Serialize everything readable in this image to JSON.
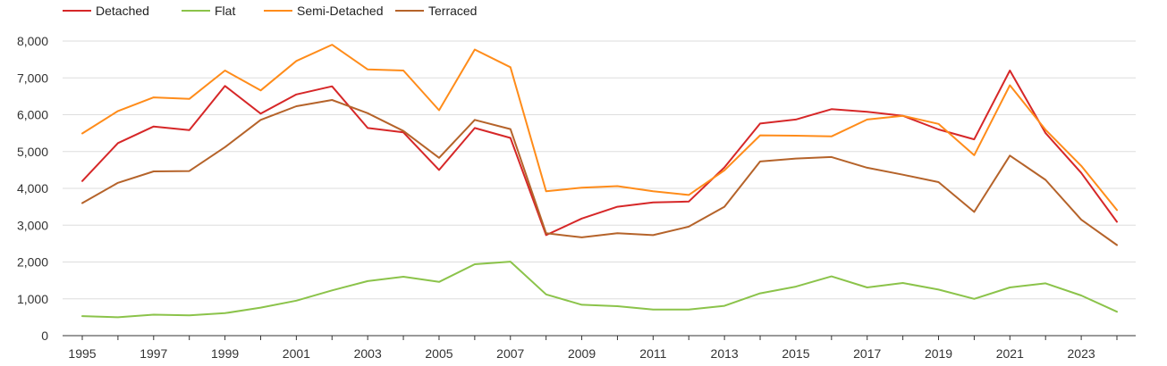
{
  "chart_data": {
    "type": "line",
    "title": "",
    "xlabel": "",
    "ylabel": "",
    "ylim": [
      0,
      8000
    ],
    "xlim": [
      1995,
      2024
    ],
    "grid": true,
    "legend_position": "top-left",
    "y_ticks": [
      0,
      1000,
      2000,
      3000,
      4000,
      5000,
      6000,
      7000,
      8000
    ],
    "y_tick_labels": [
      "0",
      "1,000",
      "2,000",
      "3,000",
      "4,000",
      "5,000",
      "6,000",
      "7,000",
      "8,000"
    ],
    "x_ticks": [
      1995,
      1997,
      1999,
      2001,
      2003,
      2005,
      2007,
      2009,
      2011,
      2013,
      2015,
      2017,
      2019,
      2021,
      2023
    ],
    "x_tick_labels": [
      "1995",
      "1997",
      "1999",
      "2001",
      "2003",
      "2005",
      "2007",
      "2009",
      "2011",
      "2013",
      "2015",
      "2017",
      "2019",
      "2021",
      "2023"
    ],
    "x": [
      1995,
      1996,
      1997,
      1998,
      1999,
      2000,
      2001,
      2002,
      2003,
      2004,
      2005,
      2006,
      2007,
      2008,
      2009,
      2010,
      2011,
      2012,
      2013,
      2014,
      2015,
      2016,
      2017,
      2018,
      2019,
      2020,
      2021,
      2022,
      2023,
      2024
    ],
    "series": [
      {
        "name": "Detached",
        "color": "#d62728",
        "values": [
          4200,
          5230,
          5680,
          5580,
          6780,
          6030,
          6550,
          6770,
          5640,
          5520,
          4500,
          5640,
          5370,
          2730,
          3180,
          3500,
          3620,
          3640,
          4570,
          5760,
          5870,
          6150,
          6080,
          5970,
          5600,
          5330,
          7200,
          5500,
          4420,
          3090
        ]
      },
      {
        "name": "Flat",
        "color": "#8bc34a",
        "values": [
          530,
          500,
          570,
          550,
          610,
          760,
          950,
          1230,
          1480,
          1600,
          1460,
          1940,
          2010,
          1120,
          840,
          800,
          710,
          710,
          810,
          1150,
          1330,
          1610,
          1310,
          1430,
          1250,
          1000,
          1310,
          1420,
          1090,
          650
        ]
      },
      {
        "name": "Semi-Detached",
        "color": "#ff8c1a",
        "values": [
          5490,
          6100,
          6470,
          6430,
          7200,
          6660,
          7460,
          7900,
          7230,
          7200,
          6120,
          7770,
          7290,
          3920,
          4020,
          4060,
          3920,
          3820,
          4490,
          5440,
          5430,
          5410,
          5870,
          5970,
          5750,
          4900,
          6800,
          5590,
          4610,
          3410
        ]
      },
      {
        "name": "Terraced",
        "color": "#b5632a",
        "values": [
          3600,
          4150,
          4460,
          4470,
          5120,
          5860,
          6230,
          6400,
          6040,
          5560,
          4830,
          5860,
          5610,
          2780,
          2670,
          2780,
          2730,
          2960,
          3500,
          4730,
          4810,
          4850,
          4560,
          4370,
          4170,
          3360,
          4890,
          4230,
          3150,
          2460
        ]
      }
    ]
  }
}
